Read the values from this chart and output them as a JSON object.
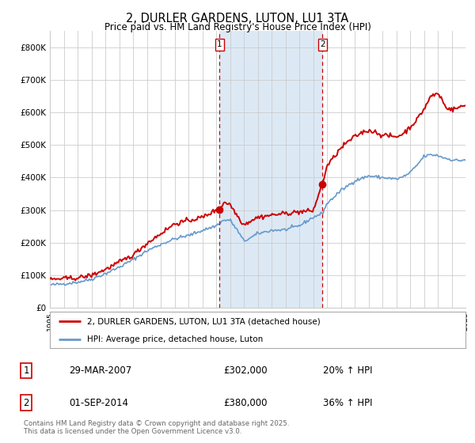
{
  "title": "2, DURLER GARDENS, LUTON, LU1 3TA",
  "subtitle": "Price paid vs. HM Land Registry's House Price Index (HPI)",
  "ylim": [
    0,
    850000
  ],
  "yticks": [
    0,
    100000,
    200000,
    300000,
    400000,
    500000,
    600000,
    700000,
    800000
  ],
  "ytick_labels": [
    "£0",
    "£100K",
    "£200K",
    "£300K",
    "£400K",
    "£500K",
    "£600K",
    "£700K",
    "£800K"
  ],
  "year_start": 1995,
  "year_end": 2025,
  "sale1_year": 2007.24,
  "sale1_price": 302000,
  "sale1_label": "1",
  "sale2_year": 2014.67,
  "sale2_price": 380000,
  "sale2_label": "2",
  "shade_color": "#dce9f5",
  "red_line_color": "#cc0000",
  "blue_line_color": "#6699cc",
  "grid_color": "#cccccc",
  "bg_color": "#ffffff",
  "legend_house_label": "2, DURLER GARDENS, LUTON, LU1 3TA (detached house)",
  "legend_hpi_label": "HPI: Average price, detached house, Luton",
  "annotation1_date": "29-MAR-2007",
  "annotation1_price": "£302,000",
  "annotation1_hpi": "20% ↑ HPI",
  "annotation2_date": "01-SEP-2014",
  "annotation2_price": "£380,000",
  "annotation2_hpi": "36% ↑ HPI",
  "footer": "Contains HM Land Registry data © Crown copyright and database right 2025.\nThis data is licensed under the Open Government Licence v3.0."
}
